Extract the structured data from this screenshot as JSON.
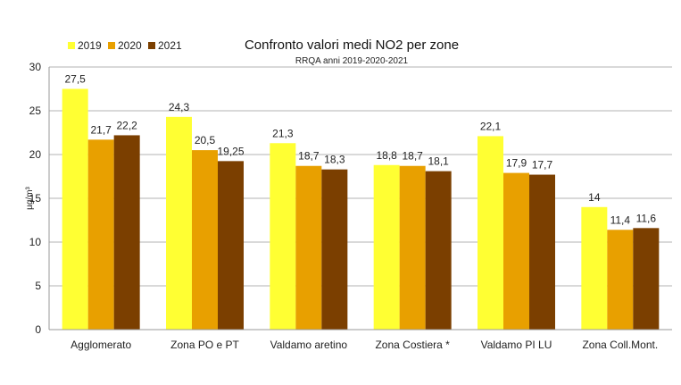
{
  "chart_data": {
    "type": "bar",
    "title": "Confronto valori medi NO2 per zone",
    "subtitle": "RRQA anni 2019-2020-2021",
    "ylabel": "µg/m³",
    "xlabel": "",
    "ylim": [
      0,
      30
    ],
    "yticks": [
      0,
      5,
      10,
      15,
      20,
      25,
      30
    ],
    "grid": true,
    "legend_position": "top-left",
    "categories": [
      "Agglomerato",
      "Zona PO e PT",
      "Valdamo aretino",
      "Zona Costiera *",
      "Valdamo PI LU",
      "Zona Coll.Mont."
    ],
    "series": [
      {
        "name": "2019",
        "color": "#ffff33",
        "values": [
          27.5,
          24.3,
          21.3,
          18.8,
          22.1,
          14
        ],
        "labels": [
          "27,5",
          "24,3",
          "21,3",
          "18,8",
          "22,1",
          "14"
        ]
      },
      {
        "name": "2020",
        "color": "#e8a000",
        "values": [
          21.7,
          20.5,
          18.7,
          18.7,
          17.9,
          11.4
        ],
        "labels": [
          "21,7",
          "20,5",
          "18,7",
          "18,7",
          "17,9",
          "11,4"
        ]
      },
      {
        "name": "2021",
        "color": "#7b3f00",
        "values": [
          22.2,
          19.25,
          18.3,
          18.1,
          17.7,
          11.6
        ],
        "labels": [
          "22,2",
          "19,25",
          "18,3",
          "18,1",
          "17,7",
          "11,6"
        ]
      }
    ]
  }
}
